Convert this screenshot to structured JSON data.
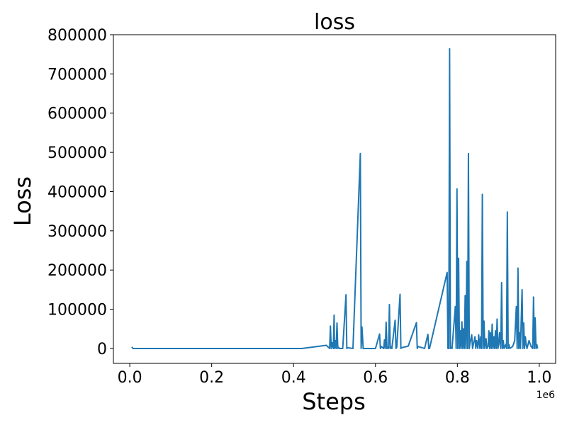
{
  "chart_data": {
    "type": "line",
    "title": "loss",
    "xlabel": "Steps",
    "ylabel": "Loss",
    "x_offset_label": "1e6",
    "xlim": [
      -40000,
      1040000
    ],
    "ylim": [
      -38000,
      800000
    ],
    "xticks": [
      0,
      200000,
      400000,
      600000,
      800000,
      1000000
    ],
    "xtick_labels": [
      "0.0",
      "0.2",
      "0.4",
      "0.6",
      "0.8",
      "1.0"
    ],
    "yticks": [
      0,
      100000,
      200000,
      300000,
      400000,
      500000,
      600000,
      700000,
      800000
    ],
    "ytick_labels": [
      "0",
      "100000",
      "200000",
      "300000",
      "400000",
      "500000",
      "600000",
      "700000",
      "800000"
    ],
    "grid": false,
    "legend": "none",
    "series": [
      {
        "color": "#1f77b4",
        "x": [
          5000,
          8000,
          12000,
          420000,
          480000,
          488000,
          490000,
          492000,
          494000,
          497000,
          499000,
          500000,
          502000,
          504000,
          506000,
          508000,
          510000,
          512000,
          520000,
          528000,
          530000,
          532000,
          545000,
          563000,
          565000,
          567000,
          570000,
          600000,
          610000,
          612000,
          614000,
          620000,
          622000,
          624000,
          626000,
          628000,
          630000,
          632000,
          634000,
          636000,
          638000,
          640000,
          648000,
          650000,
          652000,
          660000,
          662000,
          664000,
          680000,
          700000,
          702000,
          704000,
          720000,
          728000,
          730000,
          732000,
          775000,
          777000,
          779000,
          781000,
          783000,
          785000,
          787000,
          795000,
          797000,
          799000,
          801000,
          803000,
          805000,
          807000,
          809000,
          811000,
          813000,
          815000,
          817000,
          819000,
          821000,
          823000,
          825000,
          827000,
          829000,
          831000,
          835000,
          837000,
          839000,
          843000,
          845000,
          847000,
          850000,
          852000,
          855000,
          857000,
          859000,
          861000,
          863000,
          865000,
          867000,
          870000,
          872000,
          875000,
          877000,
          879000,
          881000,
          883000,
          885000,
          887000,
          889000,
          891000,
          893000,
          895000,
          897000,
          899000,
          901000,
          903000,
          906000,
          908000,
          910000,
          912000,
          914000,
          918000,
          920000,
          922000,
          924000,
          926000,
          928000,
          935000,
          940000,
          944000,
          946000,
          948000,
          950000,
          952000,
          954000,
          958000,
          960000,
          962000,
          964000,
          966000,
          968000,
          970000,
          975000,
          980000,
          984000,
          986000,
          988000,
          990000,
          992000,
          994000,
          996000
        ],
        "y": [
          4000,
          0,
          0,
          0,
          8000,
          0,
          57000,
          0,
          15000,
          0,
          85000,
          0,
          20000,
          0,
          65000,
          0,
          3000,
          0,
          0,
          137000,
          0,
          2000,
          0,
          497000,
          0,
          55000,
          0,
          0,
          37000,
          0,
          5000,
          0,
          22000,
          0,
          67000,
          0,
          3000,
          0,
          112000,
          0,
          4000,
          0,
          72000,
          0,
          3000,
          138000,
          0,
          2000,
          6000,
          66000,
          0,
          5000,
          0,
          36000,
          0,
          0,
          194000,
          0,
          0,
          764000,
          0,
          2000,
          0,
          107000,
          0,
          407000,
          0,
          230000,
          0,
          45000,
          0,
          68000,
          0,
          50000,
          0,
          135000,
          0,
          222000,
          0,
          497000,
          0,
          15000,
          35000,
          0,
          10000,
          30000,
          0,
          20000,
          0,
          35000,
          0,
          30000,
          0,
          393000,
          0,
          70000,
          0,
          25000,
          0,
          5000,
          45000,
          0,
          40000,
          0,
          62000,
          0,
          30000,
          0,
          45000,
          0,
          75000,
          0,
          10000,
          40000,
          0,
          168000,
          0,
          20000,
          0,
          10000,
          0,
          348000,
          0,
          10000,
          0,
          5000,
          20000,
          107000,
          0,
          205000,
          0,
          40000,
          0,
          150000,
          0,
          65000,
          0,
          30000,
          10000,
          0,
          20000,
          5000,
          0,
          131000,
          0,
          78000,
          0,
          10000,
          0
        ]
      }
    ]
  }
}
